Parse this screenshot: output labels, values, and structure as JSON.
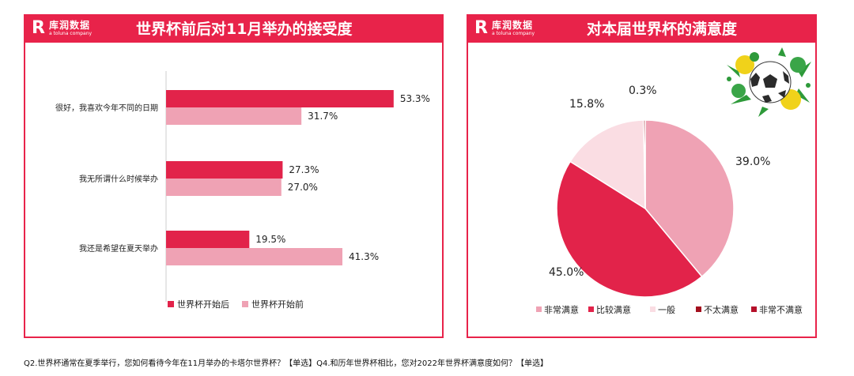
{
  "brand": {
    "logo_mark": "R",
    "name": "库润数据",
    "tagline": "a toluna company"
  },
  "colors": {
    "accent": "#e8234a",
    "after": "#e2234a",
    "before": "#efa2b4",
    "pie_very": "#efa2b4",
    "pie_quite": "#e2234a",
    "pie_neutral": "#fadde3",
    "pie_notvery": "#a3101e",
    "pie_very_not": "#b5102a"
  },
  "left_panel": {
    "title": "世界杯前后对11月举办的接受度"
  },
  "right_panel": {
    "title": "对本届世界杯的满意度"
  },
  "chart_data": [
    {
      "type": "bar",
      "orientation": "horizontal",
      "title": "世界杯前后对11月举办的接受度",
      "categories": [
        "很好，我喜欢今年不同的日期",
        "我无所谓什么时候举办",
        "我还是希望在夏天举办"
      ],
      "series": [
        {
          "name": "世界杯开始后",
          "values": [
            53.3,
            27.3,
            19.5
          ],
          "labels": [
            "53.3%",
            "27.3%",
            "19.5%"
          ]
        },
        {
          "name": "世界杯开始前",
          "values": [
            31.7,
            27.0,
            41.3
          ],
          "labels": [
            "31.7%",
            "27.0%",
            "41.3%"
          ]
        }
      ],
      "xlim": [
        0,
        60
      ],
      "legend": "bottom"
    },
    {
      "type": "pie",
      "title": "对本届世界杯的满意度",
      "categories": [
        "非常满意",
        "比较满意",
        "一般",
        "不太满意",
        "非常不满意"
      ],
      "values": [
        39.0,
        45.0,
        15.8,
        0.3,
        0.0
      ],
      "slice_labels": [
        "39.0%",
        "45.0%",
        "15.8%",
        "0.3%",
        ""
      ],
      "legend": "bottom"
    }
  ],
  "footnote": "Q2.世界杯通常在夏季举行，您如何看待今年在11月举办的卡塔尔世界杯？【单选】Q4.和历年世界杯相比，您对2022年世界杯满意度如何？【单选】"
}
